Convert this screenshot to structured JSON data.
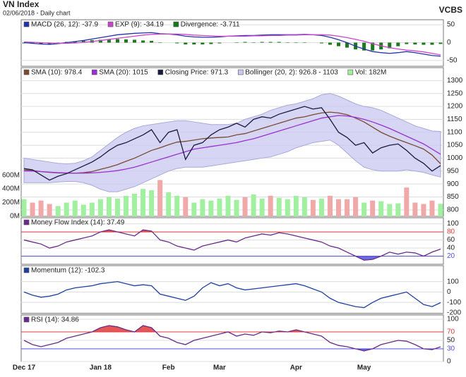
{
  "header": {
    "title": "VN Index",
    "subtitle": "02/06/2018 - Daily chart",
    "source": "VCBS"
  },
  "chart_data": [
    {
      "type": "line",
      "ylim": [
        -66,
        64
      ],
      "yticks": [
        -50,
        0,
        50
      ],
      "grid": true,
      "series": [
        {
          "name": "MACD (26, 12): -37.9",
          "color": "#2233aa",
          "values": [
            0,
            -2,
            -4,
            -5,
            -3,
            0,
            3,
            6,
            10,
            14,
            18,
            22,
            24,
            26,
            27,
            28,
            25,
            24,
            22,
            18,
            16,
            15,
            15,
            16,
            18,
            19,
            20,
            20,
            21,
            22,
            22,
            22,
            22,
            23,
            22,
            20,
            15,
            8,
            0,
            -10,
            -18,
            -25,
            -28,
            -30,
            -28,
            -25,
            -28,
            -32,
            -36,
            -37.9
          ]
        },
        {
          "name": "EXP (9): -34.19",
          "color": "#cc44cc",
          "values": [
            2,
            1,
            0,
            -1,
            -2,
            -2,
            -1,
            1,
            3,
            6,
            9,
            12,
            15,
            18,
            21,
            23,
            24,
            24,
            24,
            23,
            21,
            20,
            19,
            18,
            18,
            18,
            18,
            19,
            19,
            20,
            20,
            21,
            21,
            22,
            22,
            22,
            21,
            18,
            14,
            9,
            4,
            -3,
            -9,
            -14,
            -18,
            -21,
            -23,
            -26,
            -30,
            -34.19
          ]
        },
        {
          "name": "Divergence: -3.711",
          "color": "#1a7a1a",
          "type": "bar",
          "values": [
            -2,
            -3,
            -4,
            -4,
            -1,
            2,
            4,
            5,
            7,
            8,
            9,
            10,
            9,
            8,
            6,
            5,
            1,
            0,
            -2,
            -5,
            -5,
            -5,
            -4,
            -2,
            0,
            1,
            2,
            1,
            2,
            2,
            2,
            1,
            1,
            1,
            0,
            -2,
            -6,
            -10,
            -14,
            -19,
            -22,
            -22,
            -19,
            -16,
            -10,
            -4,
            -5,
            -6,
            -6,
            -3.711
          ]
        }
      ]
    },
    {
      "type": "line",
      "ylim": [
        775,
        1350
      ],
      "yticks": [
        800,
        850,
        900,
        950,
        1000,
        1050,
        1100,
        1150,
        1200,
        1250,
        1300
      ],
      "grid": true,
      "y2lim": [
        0,
        2170
      ],
      "y2ticks": [
        {
          "value": 0,
          "label": "0M"
        },
        {
          "value": 200,
          "label": "200M"
        },
        {
          "value": 400,
          "label": "400M"
        },
        {
          "value": 600,
          "label": "600M"
        }
      ],
      "series": [
        {
          "name": "SMA (10): 978.4",
          "color": "#7a4a30",
          "values": [
            955,
            952,
            948,
            945,
            943,
            942,
            942,
            944,
            948,
            957,
            965,
            975,
            988,
            1000,
            1015,
            1030,
            1040,
            1052,
            1062,
            1065,
            1070,
            1075,
            1078,
            1080,
            1082,
            1090,
            1095,
            1105,
            1115,
            1125,
            1135,
            1145,
            1155,
            1160,
            1168,
            1175,
            1178,
            1175,
            1168,
            1155,
            1140,
            1120,
            1100,
            1085,
            1072,
            1060,
            1048,
            1035,
            1012,
            978.4
          ]
        },
        {
          "name": "SMA (20): 1015",
          "color": "#9a30d0",
          "values": [
            950,
            950,
            948,
            946,
            944,
            943,
            942,
            942,
            943,
            945,
            948,
            952,
            958,
            965,
            975,
            985,
            995,
            1005,
            1015,
            1025,
            1035,
            1040,
            1045,
            1050,
            1055,
            1060,
            1068,
            1075,
            1085,
            1095,
            1105,
            1115,
            1125,
            1135,
            1145,
            1155,
            1160,
            1165,
            1163,
            1158,
            1150,
            1140,
            1128,
            1115,
            1100,
            1085,
            1070,
            1055,
            1035,
            1015
          ]
        },
        {
          "name": "Closing Price: 971.3",
          "color": "#1a1a40",
          "values": [
            960,
            955,
            935,
            915,
            930,
            940,
            955,
            970,
            985,
            1005,
            1030,
            1050,
            1060,
            1075,
            1090,
            1110,
            1060,
            1100,
            1110,
            995,
            1050,
            1060,
            1090,
            1110,
            1120,
            1135,
            1120,
            1150,
            1160,
            1155,
            1170,
            1180,
            1190,
            1200,
            1190,
            1195,
            1150,
            1100,
            1080,
            1050,
            1060,
            1020,
            1040,
            1050,
            1055,
            1030,
            1000,
            980,
            950,
            971.3
          ]
        },
        {
          "name": "Bollinger (20, 2): 926.8 - 1103",
          "color": "#c8c8f0",
          "type": "band",
          "upper": [
            1000,
            995,
            990,
            985,
            980,
            978,
            980,
            990,
            1005,
            1030,
            1055,
            1080,
            1100,
            1115,
            1125,
            1130,
            1135,
            1140,
            1145,
            1145,
            1140,
            1135,
            1130,
            1130,
            1130,
            1135,
            1150,
            1160,
            1170,
            1185,
            1195,
            1205,
            1210,
            1220,
            1230,
            1245,
            1250,
            1240,
            1225,
            1210,
            1200,
            1195,
            1185,
            1170,
            1155,
            1140,
            1125,
            1115,
            1105,
            1103
          ],
          "lower": [
            905,
            905,
            905,
            905,
            908,
            910,
            910,
            905,
            895,
            880,
            870,
            870,
            880,
            890,
            905,
            920,
            935,
            950,
            960,
            965,
            965,
            965,
            970,
            975,
            980,
            985,
            990,
            995,
            1000,
            1005,
            1015,
            1025,
            1040,
            1050,
            1060,
            1065,
            1070,
            1050,
            1020,
            990,
            965,
            955,
            950,
            950,
            950,
            955,
            950,
            945,
            935,
            926.8
          ]
        },
        {
          "name": "Vol: 182M",
          "color": "#a0f0a0",
          "down_color": "#f0a8a8",
          "type": "bar",
          "axis": "y2",
          "values": [
            250,
            200,
            230,
            180,
            150,
            200,
            230,
            170,
            200,
            250,
            280,
            260,
            300,
            330,
            400,
            380,
            530,
            350,
            300,
            280,
            200,
            250,
            230,
            260,
            300,
            240,
            280,
            320,
            260,
            300,
            270,
            250,
            300,
            280,
            240,
            260,
            300,
            250,
            250,
            280,
            200,
            230,
            220,
            180,
            190,
            420,
            200,
            180,
            230,
            182
          ]
        }
      ]
    },
    {
      "type": "line",
      "ylim": [
        0,
        115
      ],
      "yticks": [
        20,
        40,
        60,
        80,
        100
      ],
      "grid": true,
      "levels": [
        {
          "value": 80,
          "color": "#e03a3a",
          "side": "above"
        },
        {
          "value": 20,
          "color": "#5050e0",
          "side": "below"
        }
      ],
      "series": [
        {
          "name": "Money Flow Index (14): 37.49",
          "color": "#6a2a8a",
          "values": [
            60,
            55,
            50,
            40,
            45,
            55,
            60,
            65,
            70,
            80,
            85,
            80,
            75,
            70,
            85,
            82,
            60,
            55,
            45,
            40,
            35,
            45,
            50,
            55,
            60,
            55,
            65,
            70,
            75,
            72,
            78,
            75,
            70,
            65,
            60,
            55,
            45,
            40,
            30,
            20,
            10,
            12,
            20,
            30,
            25,
            30,
            28,
            20,
            30,
            37.49
          ]
        }
      ]
    },
    {
      "type": "line",
      "ylim": [
        -207,
        253
      ],
      "yticks": [
        -200,
        -100,
        0,
        100
      ],
      "grid": true,
      "series": [
        {
          "name": "Momentum (12): -102.3",
          "color": "#2040a0",
          "values": [
            0,
            -30,
            -50,
            -40,
            -20,
            20,
            40,
            50,
            60,
            80,
            90,
            100,
            80,
            60,
            70,
            60,
            -20,
            -40,
            -60,
            -80,
            -40,
            40,
            90,
            60,
            80,
            40,
            20,
            30,
            40,
            50,
            60,
            70,
            80,
            60,
            30,
            0,
            -60,
            -100,
            -120,
            -140,
            -150,
            -100,
            -60,
            -40,
            -20,
            0,
            -60,
            -120,
            -140,
            -102.3
          ]
        }
      ]
    },
    {
      "type": "line",
      "ylim": [
        0,
        110
      ],
      "yticks": [
        0,
        30,
        50,
        70,
        100
      ],
      "grid": true,
      "levels": [
        {
          "value": 70,
          "color": "#e03a3a",
          "side": "above"
        },
        {
          "value": 30,
          "color": "#5050e0",
          "side": "below"
        }
      ],
      "categories": [
        "Dec 17",
        null,
        null,
        null,
        null,
        null,
        null,
        null,
        null,
        "Jan 18",
        null,
        null,
        null,
        null,
        null,
        null,
        null,
        "Feb",
        null,
        null,
        null,
        null,
        null,
        "Mar",
        null,
        null,
        null,
        null,
        null,
        null,
        null,
        null,
        "Apr",
        null,
        null,
        null,
        null,
        null,
        null,
        null,
        "May",
        null,
        null,
        null,
        null,
        null,
        null,
        null,
        null,
        null
      ],
      "series": [
        {
          "name": "RSI (14): 34.86",
          "color": "#6a2a8a",
          "values": [
            50,
            40,
            35,
            40,
            45,
            55,
            60,
            65,
            70,
            80,
            85,
            82,
            75,
            70,
            85,
            80,
            60,
            55,
            45,
            40,
            50,
            55,
            60,
            65,
            70,
            60,
            65,
            62,
            70,
            68,
            72,
            70,
            75,
            70,
            65,
            60,
            45,
            38,
            35,
            30,
            25,
            30,
            40,
            45,
            50,
            48,
            40,
            30,
            28,
            34.86
          ]
        }
      ]
    }
  ]
}
